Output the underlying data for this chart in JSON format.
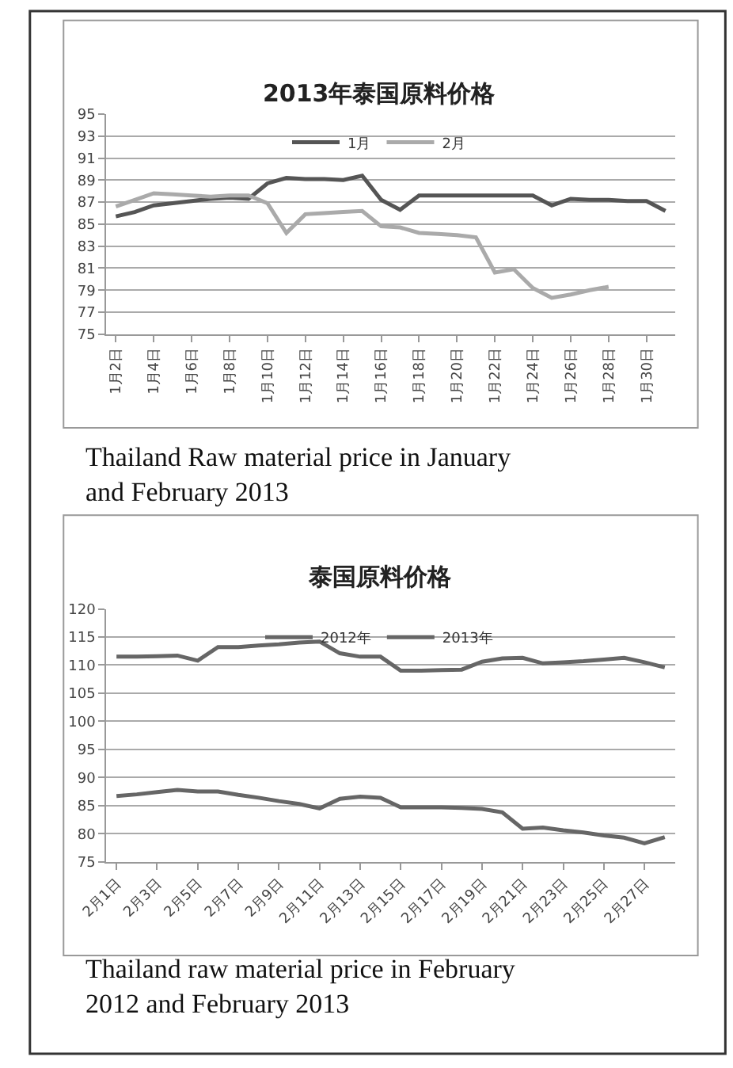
{
  "chart_data": [
    {
      "type": "line",
      "title": "2013年泰国原料价格",
      "categories": [
        "1月2日",
        null,
        "1月4日",
        null,
        "1月6日",
        null,
        "1月8日",
        null,
        "1月10日",
        null,
        "1月12日",
        null,
        "1月14日",
        null,
        "1月16日",
        null,
        "1月18日",
        null,
        "1月20日",
        null,
        "1月22日",
        null,
        "1月24日",
        null,
        "1月26日",
        null,
        "1月28日",
        null,
        "1月30日",
        null
      ],
      "series": [
        {
          "name": "1月",
          "color": "#555555",
          "values": [
            85.7,
            86.1,
            86.7,
            86.9,
            87.1,
            87.3,
            87.4,
            87.3,
            88.7,
            89.2,
            89.1,
            89.1,
            89.0,
            89.4,
            87.2,
            86.3,
            87.6,
            87.6,
            87.6,
            87.6,
            87.6,
            87.6,
            87.6,
            86.7,
            87.3,
            87.2,
            87.2,
            87.1,
            87.1,
            86.2
          ]
        },
        {
          "name": "2月",
          "color": "#aaaaaa",
          "values": [
            86.6,
            87.2,
            87.8,
            87.7,
            87.6,
            87.5,
            87.6,
            87.6,
            86.9,
            84.2,
            85.9,
            86.0,
            86.1,
            86.2,
            84.8,
            84.7,
            84.2,
            84.1,
            84.0,
            83.8,
            80.6,
            80.9,
            79.2,
            78.3,
            78.6,
            79.0,
            79.3,
            null,
            null,
            null
          ]
        }
      ],
      "ylim": [
        75,
        95
      ],
      "yticks": [
        75,
        77,
        79,
        81,
        83,
        85,
        87,
        89,
        91,
        93,
        95
      ],
      "grid": "y",
      "legend": "top",
      "annotations": [
        "Thailand Raw material price in January and February 2013"
      ]
    },
    {
      "type": "line",
      "title": "泰国原料价格",
      "categories": [
        "2月1日",
        null,
        "2月3日",
        null,
        "2月5日",
        null,
        "2月7日",
        null,
        "2月9日",
        null,
        "2月11日",
        null,
        "2月13日",
        null,
        "2月15日",
        null,
        "2月17日",
        null,
        "2月19日",
        null,
        "2月21日",
        null,
        "2月23日",
        null,
        "2月25日",
        null,
        "2月27日",
        null
      ],
      "series": [
        {
          "name": "2012年",
          "color": "#666666",
          "values": [
            111.5,
            111.5,
            111.6,
            111.7,
            110.8,
            113.2,
            113.2,
            113.5,
            113.7,
            114.0,
            114.2,
            112.1,
            111.5,
            111.5,
            109.0,
            109.0,
            109.1,
            109.2,
            110.6,
            111.2,
            111.3,
            110.3,
            110.5,
            110.7,
            111.0,
            111.3,
            110.5,
            109.6
          ]
        },
        {
          "name": "2013年",
          "color": "#666666",
          "values": [
            86.7,
            87.0,
            87.4,
            87.8,
            87.5,
            87.5,
            86.9,
            86.4,
            85.8,
            85.3,
            84.5,
            86.2,
            86.6,
            86.4,
            84.7,
            84.7,
            84.7,
            84.6,
            84.4,
            83.8,
            80.9,
            81.1,
            80.6,
            80.2,
            79.7,
            79.3,
            78.3,
            79.4
          ]
        }
      ],
      "ylim": [
        75,
        120
      ],
      "yticks": [
        75,
        80,
        85,
        90,
        95,
        100,
        105,
        110,
        115,
        120
      ],
      "grid": "y",
      "legend": "top",
      "annotations": [
        "Thailand raw material price in February 2012 and February 2013"
      ]
    }
  ]
}
